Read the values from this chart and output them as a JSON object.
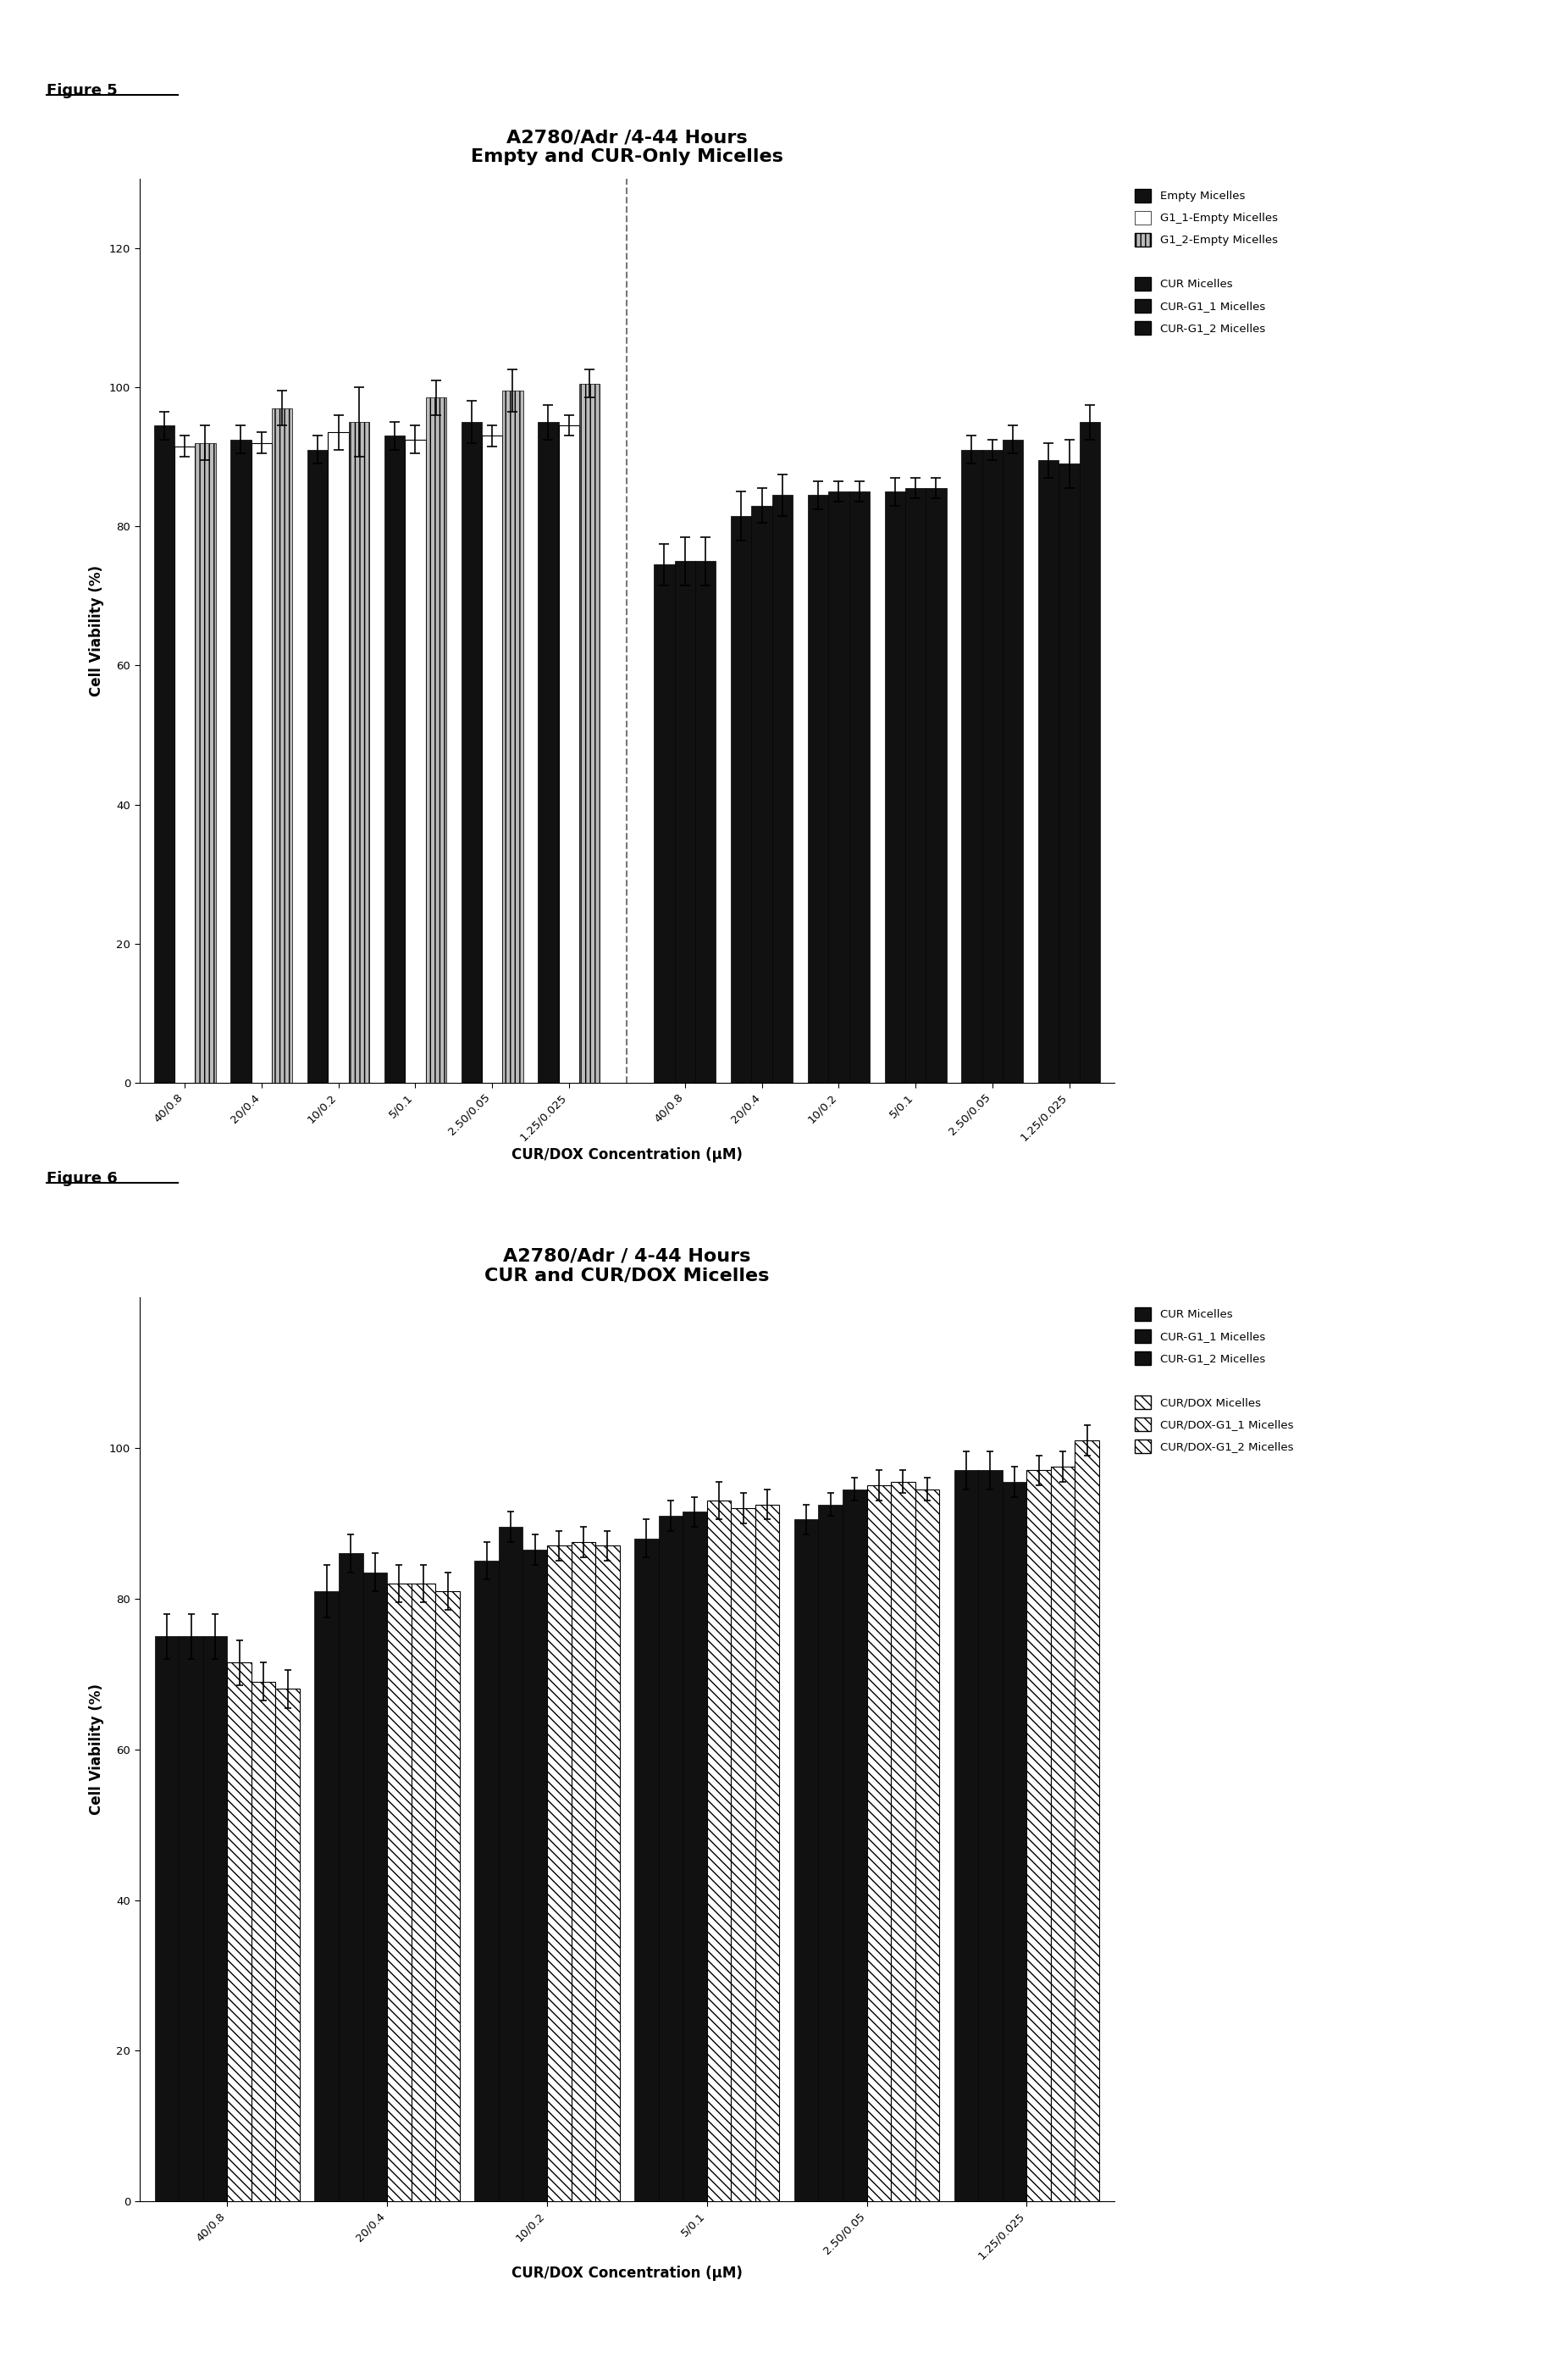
{
  "fig5_title": "A2780/Adr /4-44 Hours\nEmpty and CUR-Only Micelles",
  "fig6_title": "A2780/Adr / 4-44 Hours\nCUR and CUR/DOX Micelles",
  "fig5_label": "Figure 5",
  "fig6_label": "Figure 6",
  "xlabel": "CUR/DOX Concentration (μM)",
  "ylabel": "Cell Viability (%)",
  "fig5_groups_left": [
    "40/0.8",
    "20/0.4",
    "10/0.2",
    "5/0.1",
    "2.50/0.05",
    "1.25/0.025"
  ],
  "fig5_groups_right": [
    "40/0.8",
    "20/0.4",
    "10/0.2",
    "5/0.1",
    "2.50/0.05",
    "1.25/0.025"
  ],
  "fig5_empty_micelles": [
    94.5,
    92.5,
    91.0,
    93.0,
    95.0,
    95.0
  ],
  "fig5_g1_1_empty": [
    91.5,
    92.0,
    93.5,
    92.5,
    93.0,
    94.5
  ],
  "fig5_g1_2_empty": [
    92.0,
    97.0,
    95.0,
    98.5,
    99.5,
    100.5
  ],
  "fig5_empty_err": [
    2.0,
    2.0,
    2.0,
    2.0,
    3.0,
    2.5
  ],
  "fig5_g1_1_empty_err": [
    1.5,
    1.5,
    2.5,
    2.0,
    1.5,
    1.5
  ],
  "fig5_g1_2_empty_err": [
    2.5,
    2.5,
    5.0,
    2.5,
    3.0,
    2.0
  ],
  "fig5_cur_micelles": [
    74.5,
    81.5,
    84.5,
    85.0,
    91.0,
    89.5
  ],
  "fig5_cur_g1_1": [
    75.0,
    83.0,
    85.0,
    85.5,
    91.0,
    89.0
  ],
  "fig5_cur_g1_2": [
    75.0,
    84.5,
    85.0,
    85.5,
    92.5,
    95.0
  ],
  "fig5_cur_err": [
    3.0,
    3.5,
    2.0,
    2.0,
    2.0,
    2.5
  ],
  "fig5_cur_g1_1_err": [
    3.5,
    2.5,
    1.5,
    1.5,
    1.5,
    3.5
  ],
  "fig5_cur_g1_2_err": [
    3.5,
    3.0,
    1.5,
    1.5,
    2.0,
    2.5
  ],
  "fig6_groups": [
    "40/0.8",
    "20/0.4",
    "10/0.2",
    "5/0.1",
    "2.50/0.05",
    "1.25/0.025"
  ],
  "fig6_cur_micelles": [
    75.0,
    81.0,
    85.0,
    88.0,
    90.5,
    97.0
  ],
  "fig6_cur_g1_1": [
    75.0,
    86.0,
    89.5,
    91.0,
    92.5,
    97.0
  ],
  "fig6_cur_g1_2": [
    75.0,
    83.5,
    86.5,
    91.5,
    94.5,
    95.5
  ],
  "fig6_cur_err": [
    3.0,
    3.5,
    2.5,
    2.5,
    2.0,
    2.5
  ],
  "fig6_cur_g1_1_err": [
    3.0,
    2.5,
    2.0,
    2.0,
    1.5,
    2.5
  ],
  "fig6_cur_g1_2_err": [
    3.0,
    2.5,
    2.0,
    2.0,
    1.5,
    2.0
  ],
  "fig6_curdox_micelles": [
    71.5,
    82.0,
    87.0,
    93.0,
    95.0,
    97.0
  ],
  "fig6_curdox_g1_1": [
    69.0,
    82.0,
    87.5,
    92.0,
    95.5,
    97.5
  ],
  "fig6_curdox_g1_2": [
    68.0,
    81.0,
    87.0,
    92.5,
    94.5,
    101.0
  ],
  "fig6_curdox_err": [
    3.0,
    2.5,
    2.0,
    2.5,
    2.0,
    2.0
  ],
  "fig6_curdox_g1_1_err": [
    2.5,
    2.5,
    2.0,
    2.0,
    1.5,
    2.0
  ],
  "fig6_curdox_g1_2_err": [
    2.5,
    2.5,
    2.0,
    2.0,
    1.5,
    2.0
  ],
  "black": "#000000",
  "white": "#ffffff",
  "background": "#ffffff"
}
